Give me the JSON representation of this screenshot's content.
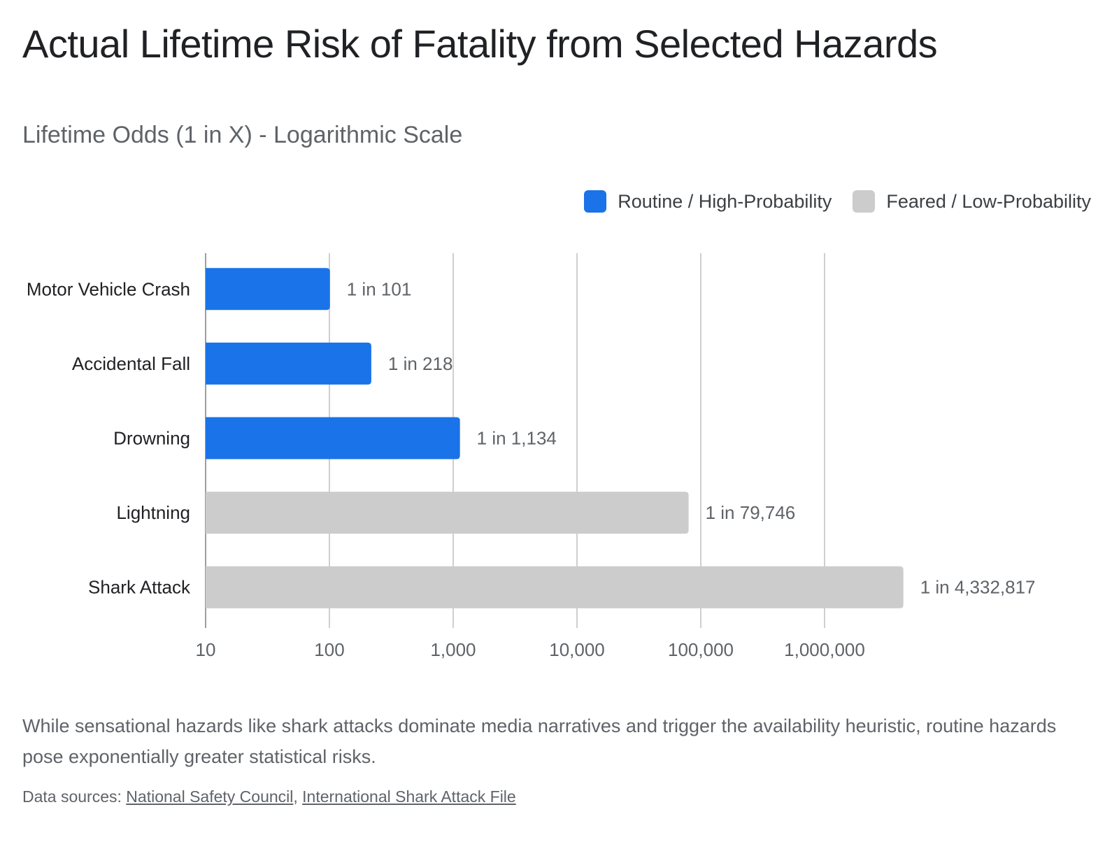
{
  "title": "Actual Lifetime Risk of Fatality from Selected Hazards",
  "subtitle": "Lifetime Odds (1 in X) - Logarithmic Scale",
  "legend": [
    {
      "label": "Routine / High-Probability",
      "color": "#1a73e8"
    },
    {
      "label": "Feared / Low-Probability",
      "color": "#cccccc"
    }
  ],
  "chart_data": {
    "type": "bar",
    "orientation": "horizontal",
    "x_scale": "log",
    "xlim": [
      10,
      10000000
    ],
    "grid": true,
    "legend_position": "top-right",
    "categories": [
      "Motor Vehicle Crash",
      "Accidental Fall",
      "Drowning",
      "Lightning",
      "Shark Attack"
    ],
    "values": [
      101,
      218,
      1134,
      79746,
      4332817
    ],
    "value_labels": [
      "1 in 101",
      "1 in 218",
      "1 in 1,134",
      "1 in 79,746",
      "1 in 4,332,817"
    ],
    "groups": [
      "Routine / High-Probability",
      "Routine / High-Probability",
      "Routine / High-Probability",
      "Feared / Low-Probability",
      "Feared / Low-Probability"
    ],
    "x_ticks": [
      10,
      100,
      1000,
      10000,
      100000,
      1000000
    ],
    "x_tick_labels": [
      "10",
      "100",
      "1,000",
      "10,000",
      "100,000",
      "1,000,000"
    ]
  },
  "caption": "While sensational hazards like shark attacks dominate media narratives and trigger the availability heuristic, routine hazards pose exponentially greater statistical risks.",
  "sources": {
    "prefix": "Data sources: ",
    "links": [
      "National Safety Council",
      "International Shark Attack File"
    ],
    "separator": ", "
  }
}
